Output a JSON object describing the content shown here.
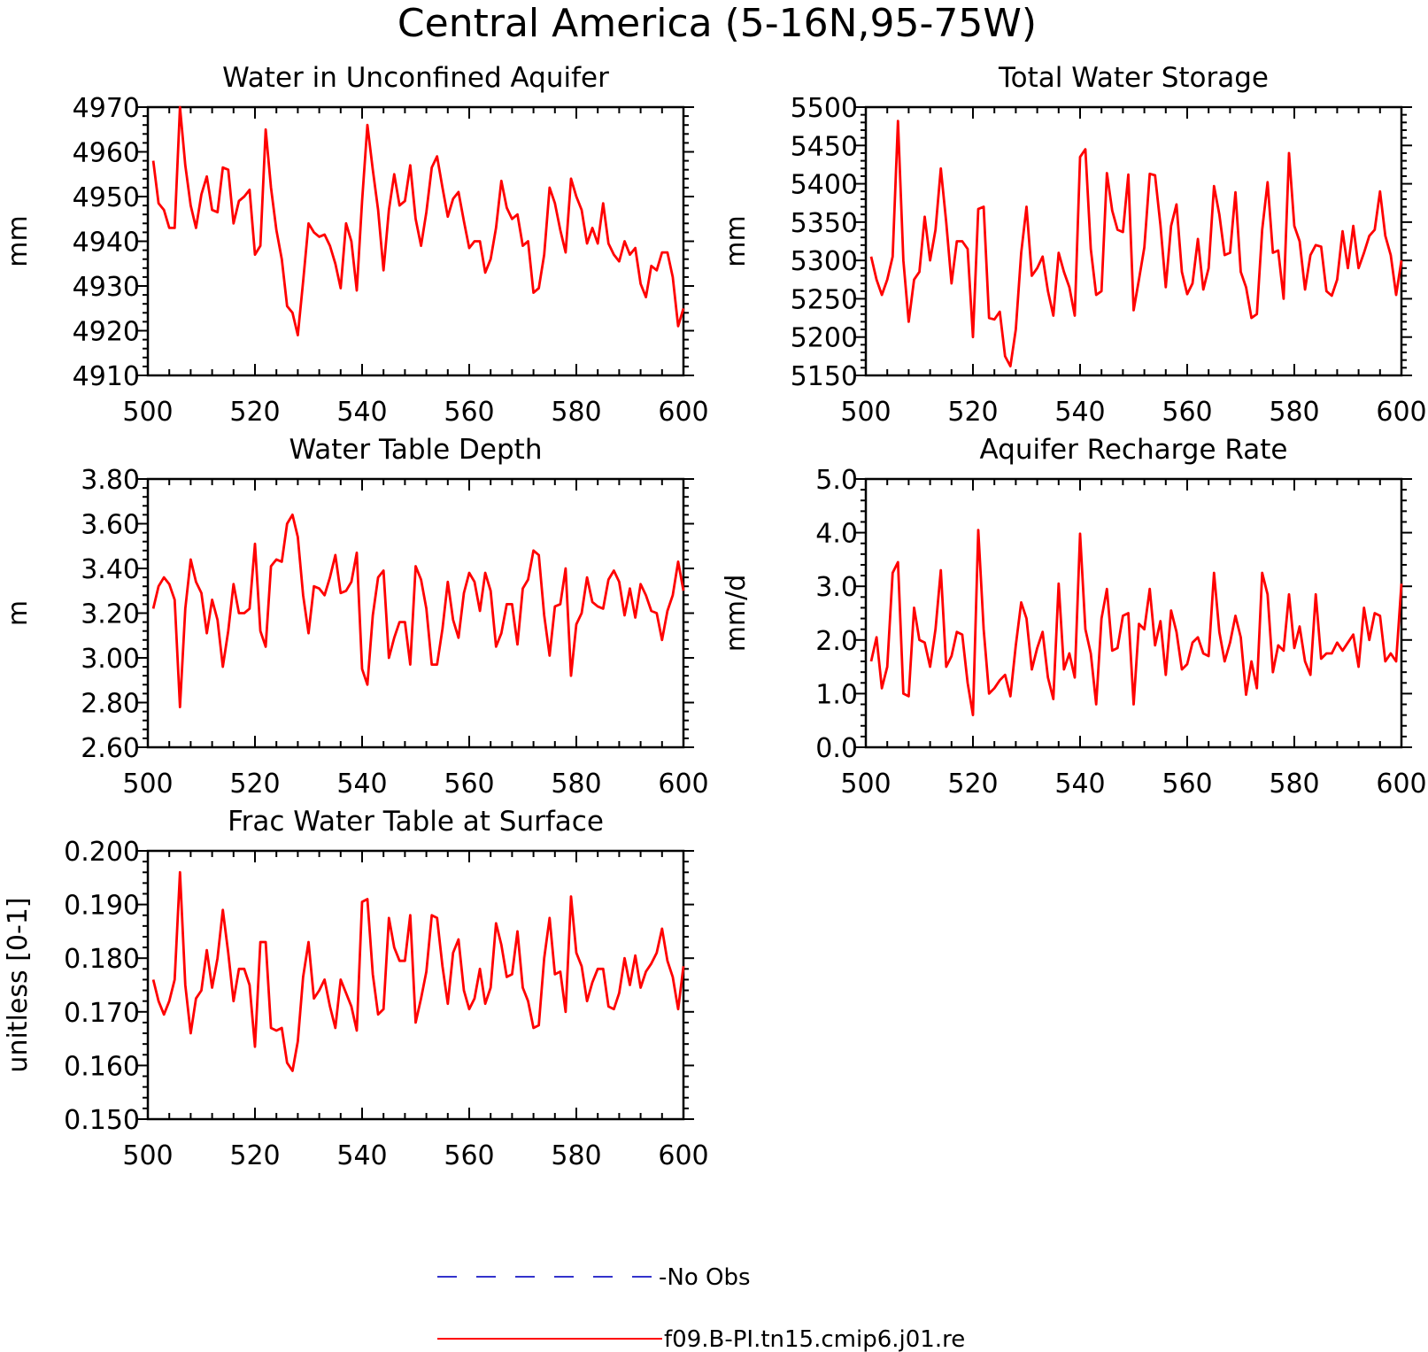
{
  "figure": {
    "title": "Central America (5-16N,95-75W)"
  },
  "legend": {
    "items": [
      {
        "label": "-No Obs",
        "color": "#3333cc",
        "style": "dashed"
      },
      {
        "label": "f09.B-PI.tn15.cmip6.j01.re",
        "color": "#ff0000",
        "style": "solid"
      }
    ]
  },
  "colors": {
    "series": "#ff0000",
    "axes": "#000000",
    "no_obs": "#3333cc"
  },
  "chart_data": [
    {
      "type": "line",
      "title": "Water in Unconfined Aquifer",
      "xlabel": "",
      "ylabel": "mm",
      "xlim": [
        500,
        600
      ],
      "ylim": [
        4910,
        4970
      ],
      "xticks": [
        500,
        520,
        540,
        560,
        580,
        600
      ],
      "yticks": [
        4910,
        4920,
        4930,
        4940,
        4950,
        4960,
        4970
      ],
      "ytick_labels": [
        "4910",
        "4920",
        "4930",
        "4940",
        "4950",
        "4960",
        "4970"
      ],
      "x_start": 501,
      "series": [
        {
          "values": [
            4958,
            4948.5,
            4947,
            4943,
            4943,
            4970,
            4957,
            4948,
            4943,
            4950.5,
            4954.5,
            4947,
            4946.5,
            4956.5,
            4956,
            4944,
            4949,
            4950,
            4951.5,
            4937,
            4939,
            4965,
            4952,
            4942.5,
            4936,
            4925.5,
            4924,
            4919,
            4931,
            4944,
            4942,
            4941,
            4941.5,
            4939,
            4935,
            4929.5,
            4944,
            4940,
            4929,
            4949,
            4966,
            4956,
            4947,
            4933.5,
            4947,
            4955,
            4948,
            4949,
            4957,
            4945,
            4939,
            4946.5,
            4956.5,
            4959,
            4952,
            4945.5,
            4949.5,
            4951,
            4944.5,
            4938.5,
            4940,
            4940,
            4933,
            4936,
            4943,
            4953.5,
            4947.5,
            4945,
            4946,
            4939,
            4940,
            4928.5,
            4929.5,
            4937,
            4952,
            4948.5,
            4942.5,
            4937.5,
            4954,
            4950,
            4947,
            4939.5,
            4943,
            4939.5,
            4948.5,
            4939.5,
            4937,
            4935.5,
            4940,
            4937,
            4938.5,
            4930.5,
            4927.5,
            4934.5,
            4933.5,
            4937.5,
            4937.5,
            4932,
            4921,
            4925
          ]
        }
      ]
    },
    {
      "type": "line",
      "title": "Total Water Storage",
      "xlabel": "",
      "ylabel": "mm",
      "xlim": [
        500,
        600
      ],
      "ylim": [
        5150,
        5500
      ],
      "xticks": [
        500,
        520,
        540,
        560,
        580,
        600
      ],
      "yticks": [
        5150,
        5200,
        5250,
        5300,
        5350,
        5400,
        5450,
        5500
      ],
      "ytick_labels": [
        "5150",
        "5200",
        "5250",
        "5300",
        "5350",
        "5400",
        "5450",
        "5500"
      ],
      "x_start": 501,
      "series": [
        {
          "values": [
            5305,
            5275,
            5255,
            5275,
            5305,
            5482,
            5300,
            5220,
            5275,
            5285,
            5357,
            5300,
            5340,
            5420,
            5350,
            5270,
            5325,
            5325,
            5315,
            5200,
            5367,
            5370,
            5225,
            5223,
            5233,
            5175,
            5162,
            5210,
            5310,
            5370,
            5280,
            5290,
            5305,
            5260,
            5228,
            5310,
            5285,
            5265,
            5228,
            5435,
            5445,
            5315,
            5255,
            5260,
            5414,
            5365,
            5340,
            5337,
            5412,
            5235,
            5275,
            5317,
            5413,
            5411,
            5346,
            5265,
            5345,
            5373,
            5285,
            5256,
            5270,
            5328,
            5262,
            5290,
            5397,
            5360,
            5307,
            5310,
            5389,
            5285,
            5265,
            5225,
            5230,
            5340,
            5402,
            5310,
            5313,
            5250,
            5440,
            5345,
            5325,
            5262,
            5307,
            5320,
            5318,
            5260,
            5254,
            5275,
            5338,
            5290,
            5345,
            5290,
            5310,
            5332,
            5340,
            5390,
            5332,
            5307,
            5255,
            5300
          ]
        }
      ]
    },
    {
      "type": "line",
      "title": "Water Table Depth",
      "xlabel": "",
      "ylabel": "m",
      "xlim": [
        500,
        600
      ],
      "ylim": [
        2.6,
        3.8
      ],
      "xticks": [
        500,
        520,
        540,
        560,
        580,
        600
      ],
      "yticks": [
        2.6,
        2.8,
        3.0,
        3.2,
        3.4,
        3.6,
        3.8
      ],
      "ytick_labels": [
        "2.60",
        "2.80",
        "3.00",
        "3.20",
        "3.40",
        "3.60",
        "3.80"
      ],
      "x_start": 501,
      "series": [
        {
          "values": [
            3.22,
            3.32,
            3.36,
            3.33,
            3.26,
            2.78,
            3.22,
            3.44,
            3.34,
            3.29,
            3.11,
            3.26,
            3.17,
            2.96,
            3.12,
            3.33,
            3.2,
            3.2,
            3.22,
            3.51,
            3.12,
            3.05,
            3.41,
            3.44,
            3.43,
            3.6,
            3.64,
            3.54,
            3.28,
            3.11,
            3.32,
            3.31,
            3.28,
            3.36,
            3.46,
            3.29,
            3.3,
            3.34,
            3.47,
            2.95,
            2.88,
            3.19,
            3.36,
            3.39,
            3.0,
            3.09,
            3.16,
            3.16,
            2.97,
            3.41,
            3.35,
            3.22,
            2.97,
            2.97,
            3.13,
            3.34,
            3.17,
            3.09,
            3.29,
            3.38,
            3.34,
            3.21,
            3.38,
            3.3,
            3.05,
            3.11,
            3.24,
            3.24,
            3.06,
            3.31,
            3.35,
            3.48,
            3.46,
            3.19,
            3.01,
            3.23,
            3.24,
            3.4,
            2.92,
            3.15,
            3.2,
            3.36,
            3.25,
            3.23,
            3.22,
            3.35,
            3.39,
            3.34,
            3.19,
            3.31,
            3.18,
            3.33,
            3.28,
            3.21,
            3.2,
            3.08,
            3.21,
            3.28,
            3.43,
            3.3
          ]
        }
      ]
    },
    {
      "type": "line",
      "title": "Aquifer Recharge Rate",
      "xlabel": "",
      "ylabel": "mm/d",
      "xlim": [
        500,
        600
      ],
      "ylim": [
        0.0,
        5.0
      ],
      "xticks": [
        500,
        520,
        540,
        560,
        580,
        600
      ],
      "yticks": [
        0.0,
        1.0,
        2.0,
        3.0,
        4.0,
        5.0
      ],
      "ytick_labels": [
        "0.0",
        "1.0",
        "2.0",
        "3.0",
        "4.0",
        "5.0"
      ],
      "x_start": 501,
      "series": [
        {
          "values": [
            1.6,
            2.05,
            1.1,
            1.5,
            3.25,
            3.45,
            1.0,
            0.95,
            2.6,
            2.0,
            1.95,
            1.5,
            2.2,
            3.3,
            1.5,
            1.7,
            2.15,
            2.1,
            1.2,
            0.6,
            4.05,
            2.2,
            1.0,
            1.1,
            1.25,
            1.35,
            0.95,
            1.9,
            2.7,
            2.4,
            1.45,
            1.85,
            2.15,
            1.3,
            0.9,
            3.05,
            1.45,
            1.75,
            1.3,
            3.98,
            2.2,
            1.75,
            0.8,
            2.4,
            2.95,
            1.8,
            1.85,
            2.45,
            2.5,
            0.8,
            2.3,
            2.2,
            2.95,
            1.9,
            2.35,
            1.35,
            2.55,
            2.15,
            1.45,
            1.55,
            1.95,
            2.05,
            1.75,
            1.7,
            3.25,
            2.15,
            1.6,
            1.95,
            2.45,
            2.05,
            0.98,
            1.6,
            1.1,
            3.25,
            2.85,
            1.4,
            1.9,
            1.8,
            2.85,
            1.85,
            2.25,
            1.6,
            1.35,
            2.85,
            1.65,
            1.75,
            1.75,
            1.95,
            1.8,
            1.95,
            2.1,
            1.5,
            2.6,
            2.0,
            2.5,
            2.45,
            1.6,
            1.75,
            1.6,
            3.05
          ]
        }
      ]
    },
    {
      "type": "line",
      "title": "Frac Water Table at Surface",
      "xlabel": "",
      "ylabel": "unitless [0-1]",
      "xlim": [
        500,
        600
      ],
      "ylim": [
        0.15,
        0.2
      ],
      "xticks": [
        500,
        520,
        540,
        560,
        580,
        600
      ],
      "yticks": [
        0.15,
        0.16,
        0.17,
        0.18,
        0.19,
        0.2
      ],
      "ytick_labels": [
        "0.150",
        "0.160",
        "0.170",
        "0.180",
        "0.190",
        "0.200"
      ],
      "x_start": 501,
      "series": [
        {
          "values": [
            0.176,
            0.172,
            0.1695,
            0.172,
            0.176,
            0.196,
            0.175,
            0.166,
            0.1725,
            0.174,
            0.1815,
            0.1745,
            0.18,
            0.189,
            0.181,
            0.172,
            0.178,
            0.178,
            0.175,
            0.1635,
            0.183,
            0.183,
            0.167,
            0.1665,
            0.167,
            0.1605,
            0.159,
            0.1645,
            0.1765,
            0.183,
            0.1725,
            0.174,
            0.176,
            0.171,
            0.167,
            0.176,
            0.1735,
            0.171,
            0.1665,
            0.1905,
            0.191,
            0.177,
            0.1695,
            0.1705,
            0.1875,
            0.182,
            0.1795,
            0.1795,
            0.188,
            0.168,
            0.1725,
            0.1775,
            0.188,
            0.1875,
            0.1785,
            0.1715,
            0.181,
            0.1835,
            0.174,
            0.1705,
            0.1725,
            0.178,
            0.1715,
            0.1745,
            0.1865,
            0.1825,
            0.1765,
            0.177,
            0.185,
            0.1745,
            0.172,
            0.167,
            0.1675,
            0.18,
            0.1875,
            0.177,
            0.1775,
            0.17,
            0.1915,
            0.181,
            0.1785,
            0.172,
            0.1755,
            0.178,
            0.178,
            0.171,
            0.1705,
            0.1735,
            0.18,
            0.175,
            0.1805,
            0.1745,
            0.1775,
            0.179,
            0.181,
            0.1855,
            0.1795,
            0.1765,
            0.1705,
            0.1785
          ]
        }
      ]
    }
  ]
}
